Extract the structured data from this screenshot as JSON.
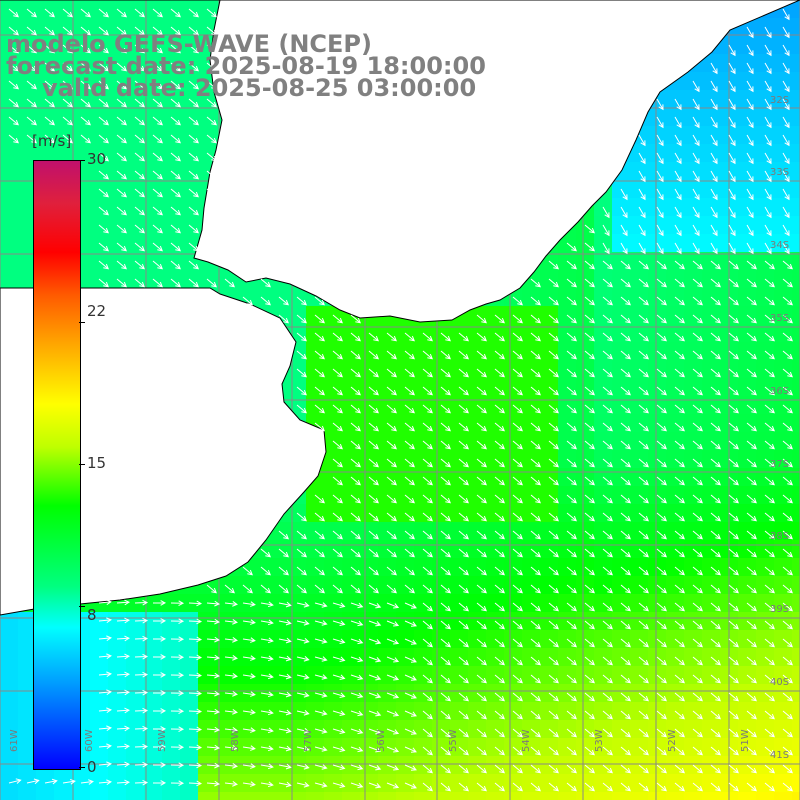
{
  "title": {
    "line1": "modelo GEFS-WAVE (NCEP)",
    "line2": "forecast date: 2025-08-19 18:00:00",
    "line3": "valid date: 2025-08-25 03:00:00"
  },
  "colorbar": {
    "unit": "[m/s]",
    "min": 0,
    "max": 30,
    "ticks": [
      {
        "value": 30,
        "label": "30"
      },
      {
        "value": 22,
        "label": "22"
      },
      {
        "value": 15,
        "label": "15"
      },
      {
        "value": 8,
        "label": "8"
      },
      {
        "value": 0,
        "label": "0"
      }
    ]
  },
  "map": {
    "lat_labels": [
      "32S",
      "33S",
      "34S",
      "35S",
      "36S",
      "37S",
      "38S",
      "39S",
      "40S",
      "41S"
    ],
    "lon_labels": [
      "61W",
      "60W",
      "59W",
      "58W",
      "57W",
      "56W",
      "55W",
      "54W",
      "53W",
      "52W",
      "51W"
    ],
    "colors": {
      "land": "#ffffff",
      "coast": "#000000",
      "grid": "#888888",
      "arrow": "#ffffff"
    },
    "wind_direction_deg_to": 135
  }
}
